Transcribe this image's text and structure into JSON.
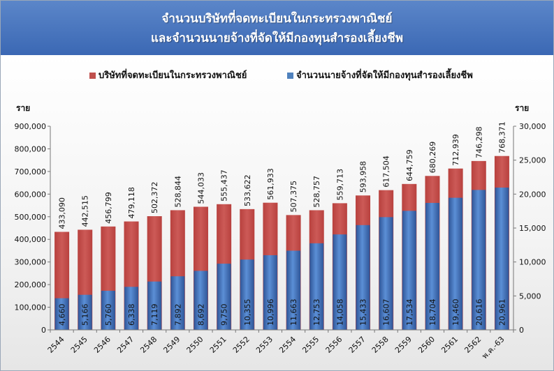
{
  "header": {
    "title_line1": "จำนวนบริษัทที่จดทะเบียนในกระทรวงพาณิชย์",
    "title_line2": "และจำนวนนายจ้างที่จัดให้มีกองทุนสำรองเลี้ยงชีพ"
  },
  "colors": {
    "title_bg": "#4a78c0",
    "companies": "#c0504d",
    "employers": "#4f81bd"
  },
  "chart_data": {
    "type": "bar",
    "categories": [
      "2544",
      "2545",
      "2546",
      "2547",
      "2548",
      "2549",
      "2550",
      "2551",
      "2552",
      "2553",
      "2554",
      "2555",
      "2556",
      "2557",
      "2558",
      "2559",
      "2560",
      "2561",
      "2562",
      "พ.ค.-63"
    ],
    "series": [
      {
        "name": "บริษัทที่จดทะเบียนในกระทรวงพาณิชย์",
        "axis": "left",
        "values": [
          433090,
          442515,
          456799,
          479118,
          502372,
          528844,
          544033,
          555437,
          533622,
          561933,
          507375,
          528757,
          559713,
          593958,
          617504,
          644759,
          680269,
          712939,
          746298,
          768371
        ],
        "labels": [
          "433,090",
          "442,515",
          "456,799",
          "479,118",
          "502,372",
          "528,844",
          "544,033",
          "555,437",
          "533,622",
          "561,933",
          "507,375",
          "528,757",
          "559,713",
          "593,958",
          "617,504",
          "644,759",
          "680,269",
          "712,939",
          "746,298",
          "768,371"
        ]
      },
      {
        "name": "จำนวนนายจ้างที่จัดให้มีกองทุนสำรองเลี้ยงชีพ",
        "axis": "right",
        "values": [
          4660,
          5166,
          5760,
          6338,
          7119,
          7892,
          8692,
          9750,
          10355,
          10996,
          11663,
          12753,
          14058,
          15433,
          16607,
          17534,
          18704,
          19460,
          20616,
          20961
        ],
        "labels": [
          "4,660",
          "5,166",
          "5,760",
          "6,338",
          "7,119",
          "7,892",
          "8,692",
          "9,750",
          "10,355",
          "10,996",
          "11,663",
          "12,753",
          "14,058",
          "15,433",
          "16,607",
          "17,534",
          "18,704",
          "19,460",
          "20,616",
          "20,961"
        ]
      }
    ],
    "left_axis": {
      "unit": "ราย",
      "ylim": [
        0,
        900000
      ],
      "ticks": [
        "0",
        "100,000",
        "200,000",
        "300,000",
        "400,000",
        "500,000",
        "600,000",
        "700,000",
        "800,000",
        "900,000"
      ]
    },
    "right_axis": {
      "unit": "ราย",
      "ylim": [
        0,
        30000
      ],
      "ticks": [
        "0",
        "5,000",
        "10,000",
        "15,000",
        "20,000",
        "25,000",
        "30,000"
      ]
    },
    "legend_position": "top",
    "grid": false
  }
}
